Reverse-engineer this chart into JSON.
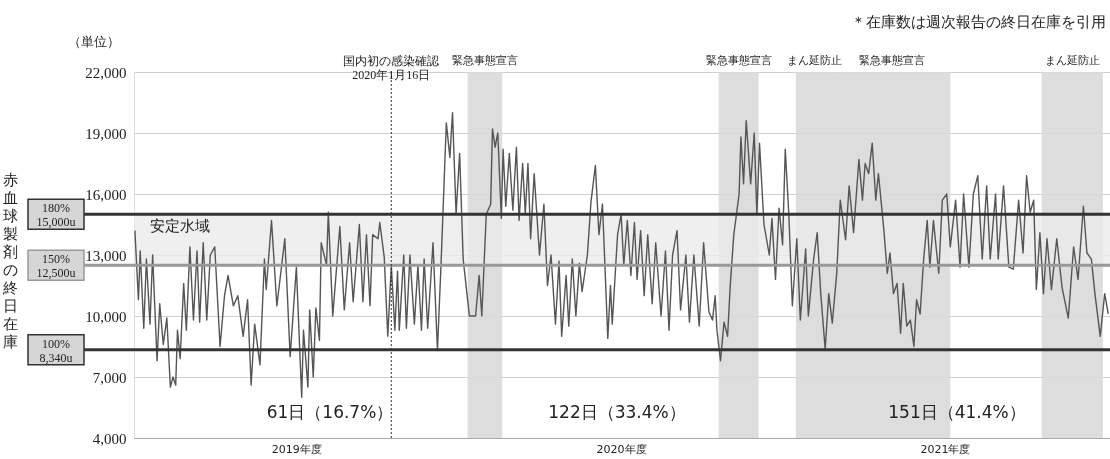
{
  "chart_data": {
    "type": "line",
    "ylabel": "赤血球製剤の終日在庫",
    "x": [
      "2019-04-02",
      "2019-04-06",
      "2019-04-08",
      "2019-04-12",
      "2019-04-15",
      "2019-04-19",
      "2019-04-22",
      "2019-04-27",
      "2019-04-30",
      "2019-05-04",
      "2019-05-08",
      "2019-05-12",
      "2019-05-15",
      "2019-05-18",
      "2019-05-20",
      "2019-05-23",
      "2019-05-27",
      "2019-05-30",
      "2019-06-03",
      "2019-06-07",
      "2019-06-11",
      "2019-06-14",
      "2019-06-18",
      "2019-06-22",
      "2019-06-26",
      "2019-07-01",
      "2019-07-07",
      "2019-07-12",
      "2019-07-16",
      "2019-07-22",
      "2019-07-27",
      "2019-08-02",
      "2019-08-07",
      "2019-08-11",
      "2019-08-15",
      "2019-08-21",
      "2019-08-26",
      "2019-08-28",
      "2019-09-03",
      "2019-09-09",
      "2019-09-18",
      "2019-09-24",
      "2019-10-01",
      "2019-10-07",
      "2019-10-09",
      "2019-10-14",
      "2019-10-16",
      "2019-10-20",
      "2019-10-23",
      "2019-10-27",
      "2019-10-29",
      "2019-11-04",
      "2019-11-06",
      "2019-11-11",
      "2019-11-19",
      "2019-11-24",
      "2019-11-30",
      "2019-12-04",
      "2019-12-11",
      "2019-12-15",
      "2019-12-19",
      "2019-12-23",
      "2019-12-26",
      "2020-01-01",
      "2020-01-03",
      "2020-01-08",
      "2020-01-12",
      "2020-01-16",
      "2020-01-20",
      "2020-01-23",
      "2020-01-25",
      "2020-01-30",
      "2020-02-02",
      "2020-02-06",
      "2020-02-11",
      "2020-02-15",
      "2020-02-19",
      "2020-02-22",
      "2020-02-26",
      "2020-03-03",
      "2020-03-08",
      "2020-03-12",
      "2020-03-18",
      "2020-03-22",
      "2020-03-25",
      "2020-03-29",
      "2020-04-02",
      "2020-04-06",
      "2020-04-13",
      "2020-04-20",
      "2020-04-24",
      "2020-04-27",
      "2020-05-02",
      "2020-05-07",
      "2020-05-09",
      "2020-05-12",
      "2020-05-15",
      "2020-05-19",
      "2020-05-21",
      "2020-05-24",
      "2020-05-28",
      "2020-06-01",
      "2020-06-05",
      "2020-06-08",
      "2020-06-12",
      "2020-06-15",
      "2020-06-18",
      "2020-06-21",
      "2020-06-25",
      "2020-07-01",
      "2020-07-06",
      "2020-07-10",
      "2020-07-14",
      "2020-07-19",
      "2020-07-23",
      "2020-07-26",
      "2020-07-31",
      "2020-08-03",
      "2020-08-07",
      "2020-08-11",
      "2020-08-15",
      "2020-08-18",
      "2020-08-24",
      "2020-08-28",
      "2020-09-02",
      "2020-09-06",
      "2020-09-10",
      "2020-09-16",
      "2020-09-19",
      "2020-09-21",
      "2020-09-27",
      "2020-10-01",
      "2020-10-04",
      "2020-10-08",
      "2020-10-12",
      "2020-10-16",
      "2020-10-19",
      "2020-10-23",
      "2020-10-27",
      "2020-10-31",
      "2020-11-05",
      "2020-11-09",
      "2020-11-15",
      "2020-11-20",
      "2020-11-24",
      "2020-11-28",
      "2020-12-03",
      "2020-12-07",
      "2020-12-13",
      "2020-12-17",
      "2020-12-22",
      "2020-12-28",
      "2021-01-02",
      "2021-01-08",
      "2021-01-12",
      "2021-01-15",
      "2021-01-17",
      "2021-01-21",
      "2021-01-25",
      "2021-01-29",
      "2021-02-01",
      "2021-02-05",
      "2021-02-11",
      "2021-02-13",
      "2021-02-16",
      "2021-02-19",
      "2021-02-24",
      "2021-02-28",
      "2021-03-03",
      "2021-03-06",
      "2021-03-11",
      "2021-03-17",
      "2021-03-20",
      "2021-03-24",
      "2021-03-28",
      "2021-04-01",
      "2021-04-04",
      "2021-04-08",
      "2021-04-12",
      "2021-04-17",
      "2021-04-21",
      "2021-04-27",
      "2021-04-30",
      "2021-05-06",
      "2021-05-10",
      "2021-05-14",
      "2021-05-19",
      "2021-05-23",
      "2021-05-27",
      "2021-06-01",
      "2021-06-05",
      "2021-06-11",
      "2021-06-15",
      "2021-06-20",
      "2021-06-26",
      "2021-06-30",
      "2021-07-03",
      "2021-07-07",
      "2021-07-11",
      "2021-07-15",
      "2021-07-18",
      "2021-07-24",
      "2021-07-28",
      "2021-07-31",
      "2021-08-04",
      "2021-08-08",
      "2021-08-12",
      "2021-08-15",
      "2021-08-19",
      "2021-08-23",
      "2021-08-27",
      "2021-08-30",
      "2021-09-03",
      "2021-09-07",
      "2021-09-11",
      "2021-09-14",
      "2021-09-18",
      "2021-09-24",
      "2021-09-28",
      "2021-10-03",
      "2021-10-07",
      "2021-10-13",
      "2021-10-18",
      "2021-10-22",
      "2021-10-28",
      "2021-11-02",
      "2021-11-07",
      "2021-11-12",
      "2021-11-17",
      "2021-11-21",
      "2021-11-27",
      "2021-11-30",
      "2021-12-06",
      "2021-12-12",
      "2021-12-17",
      "2021-12-23",
      "2021-12-28",
      "2022-01-01",
      "2022-01-05",
      "2022-01-09",
      "2022-01-12",
      "2022-01-16",
      "2022-01-20",
      "2022-01-24",
      "2022-01-29",
      "2022-02-04",
      "2022-02-10",
      "2022-02-17",
      "2022-02-23",
      "2022-02-28",
      "2022-03-06",
      "2022-03-10",
      "2022-03-15",
      "2022-03-19",
      "2022-03-25",
      "2022-03-30",
      "2022-04-03"
    ],
    "series": [
      {
        "color": "#555555",
        "values": [
          14200,
          10800,
          13200,
          9400,
          12800,
          9600,
          13000,
          7800,
          10600,
          8600,
          9900,
          6500,
          7000,
          6600,
          9300,
          7900,
          11600,
          9300,
          13400,
          9800,
          13200,
          9700,
          13600,
          9800,
          13000,
          13400,
          8500,
          11000,
          12000,
          10500,
          11000,
          9000,
          10800,
          6600,
          9600,
          7600,
          12800,
          11300,
          14700,
          10500,
          13800,
          8000,
          12400,
          6000,
          9300,
          6500,
          10300,
          7000,
          10400,
          8800,
          13600,
          12500,
          15100,
          10000,
          14400,
          10300,
          13600,
          10700,
          14500,
          10700,
          14000,
          10500,
          14000,
          13800,
          14600,
          12900,
          9000,
          12500,
          9300,
          12200,
          9300,
          13000,
          9400,
          13000,
          9600,
          12500,
          9300,
          12800,
          9400,
          13600,
          8300,
          12500,
          19500,
          17800,
          20000,
          15000,
          18000,
          12800,
          10000,
          10000,
          12000,
          10000,
          15000,
          15500,
          19200,
          18300,
          19000,
          14800,
          18200,
          15400,
          18000,
          15200,
          18300,
          14700,
          17500,
          15000,
          17500,
          13800,
          17000,
          13000,
          15500,
          11500,
          13000,
          9600,
          12700,
          9000,
          12000,
          9500,
          12800,
          10000,
          12600,
          11200,
          13000,
          15600,
          17400,
          14000,
          15500,
          8900,
          11500,
          9600,
          14000,
          15000,
          12500,
          14700,
          12000,
          14600,
          11800,
          14200,
          11000,
          14000,
          10600,
          13600,
          10000,
          13200,
          9300,
          13000,
          14200,
          10300,
          13000,
          9700,
          13000,
          9500,
          13600,
          10200,
          9800,
          11000,
          9300,
          7800,
          9700,
          9000,
          11500,
          14000,
          16000,
          18800,
          16500,
          19600,
          16500,
          19000,
          15000,
          18500,
          14500,
          13000,
          14800,
          11800,
          15300,
          13500,
          18200,
          15000,
          10500,
          13800,
          9800,
          13300,
          10000,
          12800,
          14100,
          11100,
          8350,
          11100,
          9650,
          12100,
          15700,
          13750,
          16400,
          14100,
          17700,
          15700,
          17500,
          17000,
          18500,
          15700,
          17000,
          14300,
          12100,
          13100,
          11100,
          11600,
          9150,
          11600,
          9500,
          9800,
          8500,
          10800,
          10100,
          12800,
          14700,
          12400,
          14700,
          12100,
          15700,
          16000,
          13400,
          15700,
          12400,
          16000,
          12400,
          16000,
          16900,
          12800,
          16400,
          12800,
          16000,
          12800,
          16400,
          12400,
          12300,
          15700,
          13100,
          16900,
          15100,
          15700,
          11300,
          14100,
          11100,
          13800,
          11300,
          13800,
          11400,
          9900,
          13400,
          11800,
          15400,
          13100,
          12800,
          11100,
          9000,
          11100,
          10100
        ]
      }
    ],
    "xlim": [
      "2019-04-01",
      "2022-04-05"
    ],
    "xticks": [
      {
        "value": "2019-10-01",
        "label": "2019年度"
      },
      {
        "value": "2020-10-01",
        "label": "2020年度"
      },
      {
        "value": "2021-10-01",
        "label": "2021年度"
      }
    ],
    "ylim": [
      4000,
      22000
    ],
    "yticks": [
      {
        "value": 4000,
        "label": "4,000"
      },
      {
        "value": 7000,
        "label": "7,000"
      },
      {
        "value": 10000,
        "label": "10,000"
      },
      {
        "value": 13000,
        "label": "13,000"
      },
      {
        "value": 16000,
        "label": "16,000"
      },
      {
        "value": 19000,
        "label": "19,000"
      },
      {
        "value": 22000,
        "label": "22,000"
      }
    ],
    "grid": "y",
    "ref_lines": [
      {
        "axis": "y",
        "value": 15000,
        "label": "180%\n15,000u",
        "color": "#333333"
      },
      {
        "axis": "y",
        "value": 12500,
        "label": "150%\n12,500u",
        "color": "#999999"
      },
      {
        "axis": "y",
        "value": 8340,
        "label": "100%\n8,340u",
        "color": "#333333"
      },
      {
        "axis": "x",
        "value": "2020-01-16",
        "label": "国内初の感染確認\n2020年1月16日",
        "color": "#333333",
        "line_style": "dotted"
      }
    ],
    "bands": [
      {
        "axis": "y",
        "from": 12500,
        "to": 15000,
        "label": "安定水域",
        "color": "#ebebeb"
      },
      {
        "axis": "x",
        "from": "2020-04-11",
        "to": "2020-05-20",
        "label": "緊急事態宣言",
        "color": "#d9d9d9"
      },
      {
        "axis": "x",
        "from": "2021-01-19",
        "to": "2021-03-05",
        "label": "緊急事態宣言",
        "color": "#d9d9d9"
      },
      {
        "axis": "x",
        "from": "2021-04-16",
        "to": "2021-05-29",
        "label": "まん延防止",
        "color": "#d9d9d9"
      },
      {
        "axis": "x",
        "from": "2021-05-29",
        "to": "2021-10-07",
        "label": "緊急事態宣言",
        "color": "#d9d9d9"
      },
      {
        "axis": "x",
        "from": "2022-01-18",
        "to": "2022-03-28",
        "label": "まん延防止",
        "color": "#d9d9d9"
      }
    ],
    "annotations": [
      "（単位）",
      "＊在庫数は週次報告の終日在庫を引用",
      "61日（16.7%）",
      "122日（33.4%）",
      "151日（41.4%）"
    ]
  }
}
